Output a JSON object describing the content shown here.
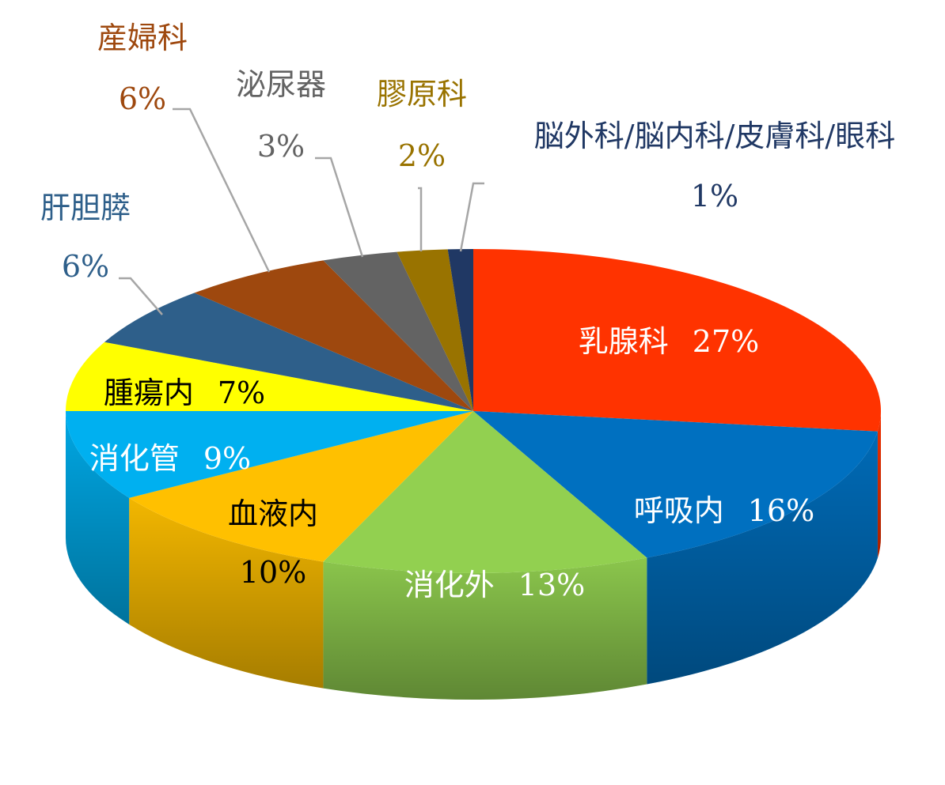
{
  "chart_data": {
    "type": "pie",
    "title": "",
    "slices": [
      {
        "label": "乳腺科",
        "value": 27,
        "pct_text": "27%",
        "color": "#FF3300",
        "label_color": "#FFFFFF"
      },
      {
        "label": "呼吸内",
        "value": 16,
        "pct_text": "16%",
        "color": "#0070C0",
        "label_color": "#FFFFFF"
      },
      {
        "label": "消化外",
        "value": 13,
        "pct_text": "13%",
        "color": "#92D050",
        "label_color": "#FFFFFF"
      },
      {
        "label": "血液内",
        "value": 10,
        "pct_text": "10%",
        "color": "#FFC000",
        "label_color": "#000000"
      },
      {
        "label": "消化管",
        "value": 9,
        "pct_text": "9%",
        "color": "#00B0F0",
        "label_color": "#FFFFFF"
      },
      {
        "label": "腫瘍内",
        "value": 7,
        "pct_text": "7%",
        "color": "#FFFF00",
        "label_color": "#000000"
      },
      {
        "label": "肝胆膵",
        "value": 6,
        "pct_text": "6%",
        "color": "#2E5F8A",
        "label_color": "#2E5F8A"
      },
      {
        "label": "産婦科",
        "value": 6,
        "pct_text": "6%",
        "color": "#9E480E",
        "label_color": "#9E480E"
      },
      {
        "label": "泌尿器",
        "value": 3,
        "pct_text": "3%",
        "color": "#636363",
        "label_color": "#636363"
      },
      {
        "label": "膠原科",
        "value": 2,
        "pct_text": "2%",
        "color": "#997300",
        "label_color": "#997300"
      },
      {
        "label": "脳外科/脳内科/皮膚科/眼科",
        "value": 1,
        "pct_text": "1%",
        "color": "#203864",
        "label_color": "#203864"
      }
    ]
  }
}
